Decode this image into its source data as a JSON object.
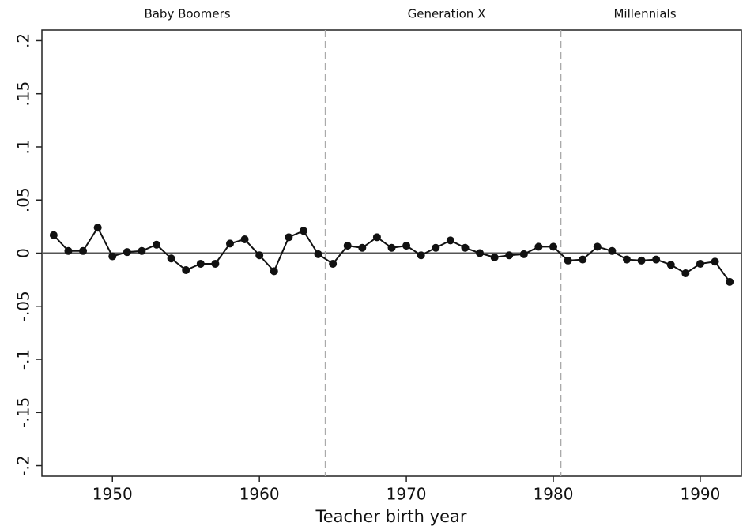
{
  "chart_data": {
    "type": "line",
    "annotations": [
      "Baby Boomers",
      "Generation X",
      "Millennials"
    ],
    "x_label": "Teacher birth year",
    "x": [
      1946,
      1947,
      1948,
      1949,
      1950,
      1951,
      1952,
      1953,
      1954,
      1955,
      1956,
      1957,
      1958,
      1959,
      1960,
      1961,
      1962,
      1963,
      1964,
      1965,
      1966,
      1967,
      1968,
      1969,
      1970,
      1971,
      1972,
      1973,
      1974,
      1975,
      1976,
      1977,
      1978,
      1979,
      1980,
      1981,
      1982,
      1983,
      1984,
      1985,
      1986,
      1987,
      1988,
      1989,
      1990,
      1991,
      1992
    ],
    "values": [
      0.017,
      0.002,
      0.002,
      0.024,
      -0.003,
      0.001,
      0.002,
      0.008,
      -0.005,
      -0.016,
      -0.01,
      -0.01,
      0.009,
      0.013,
      -0.002,
      -0.017,
      0.015,
      0.021,
      -0.001,
      -0.01,
      0.007,
      0.005,
      0.015,
      0.005,
      0.007,
      -0.002,
      0.005,
      0.012,
      0.005,
      0,
      -0.004,
      -0.002,
      -0.001,
      0.006,
      0.006,
      -0.007,
      -0.006,
      0.006,
      0.002,
      -0.006,
      -0.007,
      -0.006,
      -0.011,
      -0.019,
      -0.01,
      -0.008,
      -0.027
    ],
    "color": "#111111",
    "xlim": [
      1945.2,
      1992.8
    ],
    "ylim": [
      -0.21,
      0.21
    ],
    "xticks": [
      1950,
      1960,
      1970,
      1980,
      1990
    ],
    "yticks": [
      {
        "value": -0.2,
        "label": "-.2"
      },
      {
        "value": -0.15,
        "label": "-.15"
      },
      {
        "value": -0.1,
        "label": "-.1"
      },
      {
        "value": -0.05,
        "label": "-.05"
      },
      0,
      {
        "value": 0.05,
        "label": ".05"
      },
      {
        "value": 0.1,
        "label": ".1"
      },
      {
        "value": 0.15,
        "label": ".15"
      },
      {
        "value": 0.2,
        "label": ".2"
      }
    ],
    "dividers": [
      1964.5,
      1980.5
    ]
  }
}
